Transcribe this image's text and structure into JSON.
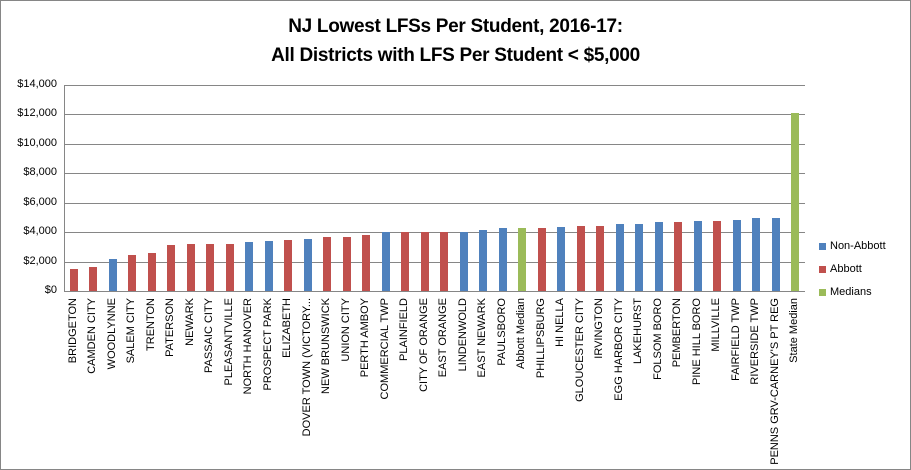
{
  "chart_data": {
    "type": "bar",
    "title": "NJ Lowest LFSs Per Student, 2016-17:",
    "subtitle": "All Districts with LFS Per Student < $5,000",
    "xlabel": "",
    "ylabel": "",
    "ylim": [
      0,
      14000
    ],
    "yticks": [
      "$0",
      "$2,000",
      "$4,000",
      "$6,000",
      "$8,000",
      "$10,000",
      "$12,000",
      "$14,000"
    ],
    "grid": true,
    "legend_position": "right",
    "legend": [
      {
        "name": "Non-Abbott",
        "color": "#4F81BD"
      },
      {
        "name": "Abbott",
        "color": "#C0504D"
      },
      {
        "name": "Medians",
        "color": "#9BBB59"
      }
    ],
    "categories": [
      "BRIDGETON",
      "CAMDEN CITY",
      "WOODLYNNE",
      "SALEM CITY",
      "TRENTON",
      "PATERSON",
      "NEWARK",
      "PASSAIC CITY",
      "PLEASANTVILLE",
      "NORTH HANOVER",
      "PROSPECT PARK",
      "ELIZABETH",
      "DOVER TOWN (VICTORY...",
      "NEW BRUNSWICK",
      "UNION CITY",
      "PERTH AMBOY",
      "COMMERCIAL TWP",
      "PLAINFIELD",
      "CITY OF ORANGE",
      "EAST ORANGE",
      "LINDENWOLD",
      "EAST NEWARK",
      "PAULSBORO",
      "Abbott Median",
      "PHILLIPSBURG",
      "HI NELLA",
      "GLOUCESTER CITY",
      "IRVINGTON",
      "EGG HARBOR CITY",
      "LAKEHURST",
      "FOLSOM BORO",
      "PEMBERTON",
      "PINE HILL BORO",
      "MILLVILLE",
      "FAIRFIELD TWP",
      "RIVERSIDE TWP",
      "PENNS GRV-CARNEY'S PT REG",
      "State Median"
    ],
    "values": [
      1500,
      1650,
      2200,
      2450,
      2600,
      3100,
      3200,
      3200,
      3200,
      3300,
      3400,
      3500,
      3550,
      3700,
      3700,
      3780,
      4000,
      4000,
      4000,
      4000,
      4000,
      4150,
      4280,
      4300,
      4300,
      4350,
      4400,
      4400,
      4550,
      4550,
      4700,
      4700,
      4750,
      4780,
      4850,
      4950,
      4950,
      12100
    ],
    "groups": [
      "Abbott",
      "Abbott",
      "Non-Abbott",
      "Abbott",
      "Abbott",
      "Abbott",
      "Abbott",
      "Abbott",
      "Abbott",
      "Non-Abbott",
      "Non-Abbott",
      "Abbott",
      "Non-Abbott",
      "Abbott",
      "Abbott",
      "Abbott",
      "Non-Abbott",
      "Abbott",
      "Abbott",
      "Abbott",
      "Non-Abbott",
      "Non-Abbott",
      "Non-Abbott",
      "Medians",
      "Abbott",
      "Non-Abbott",
      "Abbott",
      "Abbott",
      "Non-Abbott",
      "Non-Abbott",
      "Non-Abbott",
      "Abbott",
      "Non-Abbott",
      "Abbott",
      "Non-Abbott",
      "Non-Abbott",
      "Non-Abbott",
      "Medians"
    ],
    "series": [
      {
        "name": "Non-Abbott",
        "color": "#4F81BD"
      },
      {
        "name": "Abbott",
        "color": "#C0504D"
      },
      {
        "name": "Medians",
        "color": "#9BBB59"
      }
    ]
  }
}
